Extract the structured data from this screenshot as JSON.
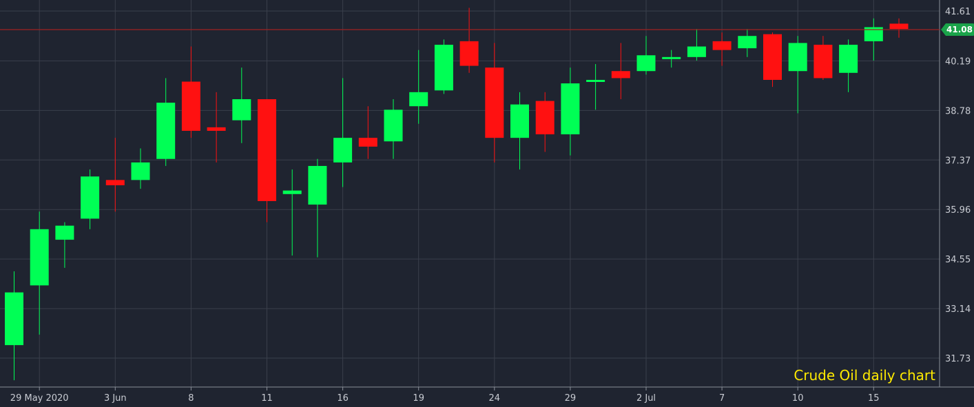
{
  "chart_data": {
    "type": "candlestick",
    "title": "",
    "caption": "Crude Oil daily chart",
    "ylim": [
      30.6,
      42.0
    ],
    "grid": true,
    "y_ticks": [
      "41.61",
      "40.19",
      "38.78",
      "37.37",
      "35.96",
      "34.55",
      "33.14",
      "31.73"
    ],
    "x_ticks": [
      "29 May 2020",
      "3 Jun",
      "8",
      "11",
      "16",
      "19",
      "24",
      "29",
      "2 Jul",
      "7",
      "10",
      "15"
    ],
    "current_price": "41.08",
    "colors": {
      "up": "#00ff55",
      "down": "#ff1111",
      "background": "#1f2430",
      "grid": "#3a3f4b",
      "price_line": "#a02020",
      "price_badge": "#1aa34a"
    },
    "candles": [
      {
        "date": "2020-05-28",
        "open": 32.1,
        "high": 34.2,
        "low": 31.1,
        "close": 33.6
      },
      {
        "date": "2020-05-29",
        "open": 33.8,
        "high": 35.9,
        "low": 32.4,
        "close": 35.4
      },
      {
        "date": "2020-06-01",
        "open": 35.1,
        "high": 35.6,
        "low": 34.3,
        "close": 35.5
      },
      {
        "date": "2020-06-02",
        "open": 35.7,
        "high": 37.1,
        "low": 35.4,
        "close": 36.9
      },
      {
        "date": "2020-06-03",
        "open": 36.8,
        "high": 38.0,
        "low": 35.9,
        "close": 36.65
      },
      {
        "date": "2020-06-04",
        "open": 36.8,
        "high": 37.7,
        "low": 36.55,
        "close": 37.3
      },
      {
        "date": "2020-06-05",
        "open": 37.4,
        "high": 39.7,
        "low": 37.2,
        "close": 39.0
      },
      {
        "date": "2020-06-08",
        "open": 39.6,
        "high": 40.6,
        "low": 38.0,
        "close": 38.2
      },
      {
        "date": "2020-06-09",
        "open": 38.3,
        "high": 39.3,
        "low": 37.3,
        "close": 38.2
      },
      {
        "date": "2020-06-10",
        "open": 38.5,
        "high": 40.0,
        "low": 37.85,
        "close": 39.1
      },
      {
        "date": "2020-06-11",
        "open": 39.1,
        "high": 39.1,
        "low": 35.6,
        "close": 36.2
      },
      {
        "date": "2020-06-12",
        "open": 36.4,
        "high": 37.1,
        "low": 34.65,
        "close": 36.5
      },
      {
        "date": "2020-06-15",
        "open": 36.1,
        "high": 37.4,
        "low": 34.6,
        "close": 37.2
      },
      {
        "date": "2020-06-16",
        "open": 37.3,
        "high": 39.7,
        "low": 36.6,
        "close": 38.0
      },
      {
        "date": "2020-06-17",
        "open": 38.0,
        "high": 38.9,
        "low": 37.4,
        "close": 37.75
      },
      {
        "date": "2020-06-18",
        "open": 37.9,
        "high": 39.1,
        "low": 37.4,
        "close": 38.8
      },
      {
        "date": "2020-06-19",
        "open": 38.9,
        "high": 40.5,
        "low": 38.4,
        "close": 39.3
      },
      {
        "date": "2020-06-22",
        "open": 39.35,
        "high": 40.8,
        "low": 39.25,
        "close": 40.65
      },
      {
        "date": "2020-06-23",
        "open": 40.75,
        "high": 41.7,
        "low": 39.85,
        "close": 40.05
      },
      {
        "date": "2020-06-24",
        "open": 40.0,
        "high": 40.7,
        "low": 37.3,
        "close": 38.0
      },
      {
        "date": "2020-06-25",
        "open": 38.0,
        "high": 39.3,
        "low": 37.1,
        "close": 38.95
      },
      {
        "date": "2020-06-26",
        "open": 39.05,
        "high": 39.3,
        "low": 37.6,
        "close": 38.1
      },
      {
        "date": "2020-06-29",
        "open": 38.1,
        "high": 40.0,
        "low": 37.5,
        "close": 39.55
      },
      {
        "date": "2020-06-30",
        "open": 39.6,
        "high": 40.1,
        "low": 38.8,
        "close": 39.65
      },
      {
        "date": "2020-07-01",
        "open": 39.9,
        "high": 40.7,
        "low": 39.1,
        "close": 39.7
      },
      {
        "date": "2020-07-02",
        "open": 39.9,
        "high": 40.9,
        "low": 39.8,
        "close": 40.35
      },
      {
        "date": "2020-07-03",
        "open": 40.3,
        "high": 40.5,
        "low": 40.0,
        "close": 40.3
      },
      {
        "date": "2020-07-06",
        "open": 40.3,
        "high": 41.1,
        "low": 40.2,
        "close": 40.6
      },
      {
        "date": "2020-07-07",
        "open": 40.75,
        "high": 41.0,
        "low": 40.05,
        "close": 40.5
      },
      {
        "date": "2020-07-08",
        "open": 40.55,
        "high": 41.1,
        "low": 40.3,
        "close": 40.9
      },
      {
        "date": "2020-07-09",
        "open": 40.95,
        "high": 41.0,
        "low": 39.45,
        "close": 39.65
      },
      {
        "date": "2020-07-10",
        "open": 39.9,
        "high": 40.9,
        "low": 38.7,
        "close": 40.7
      },
      {
        "date": "2020-07-13",
        "open": 40.65,
        "high": 40.9,
        "low": 39.65,
        "close": 39.7
      },
      {
        "date": "2020-07-14",
        "open": 39.85,
        "high": 40.8,
        "low": 39.3,
        "close": 40.65
      },
      {
        "date": "2020-07-15",
        "open": 40.75,
        "high": 41.4,
        "low": 40.2,
        "close": 41.15
      },
      {
        "date": "2020-07-16",
        "open": 41.25,
        "high": 41.4,
        "low": 40.85,
        "close": 41.1
      }
    ]
  }
}
